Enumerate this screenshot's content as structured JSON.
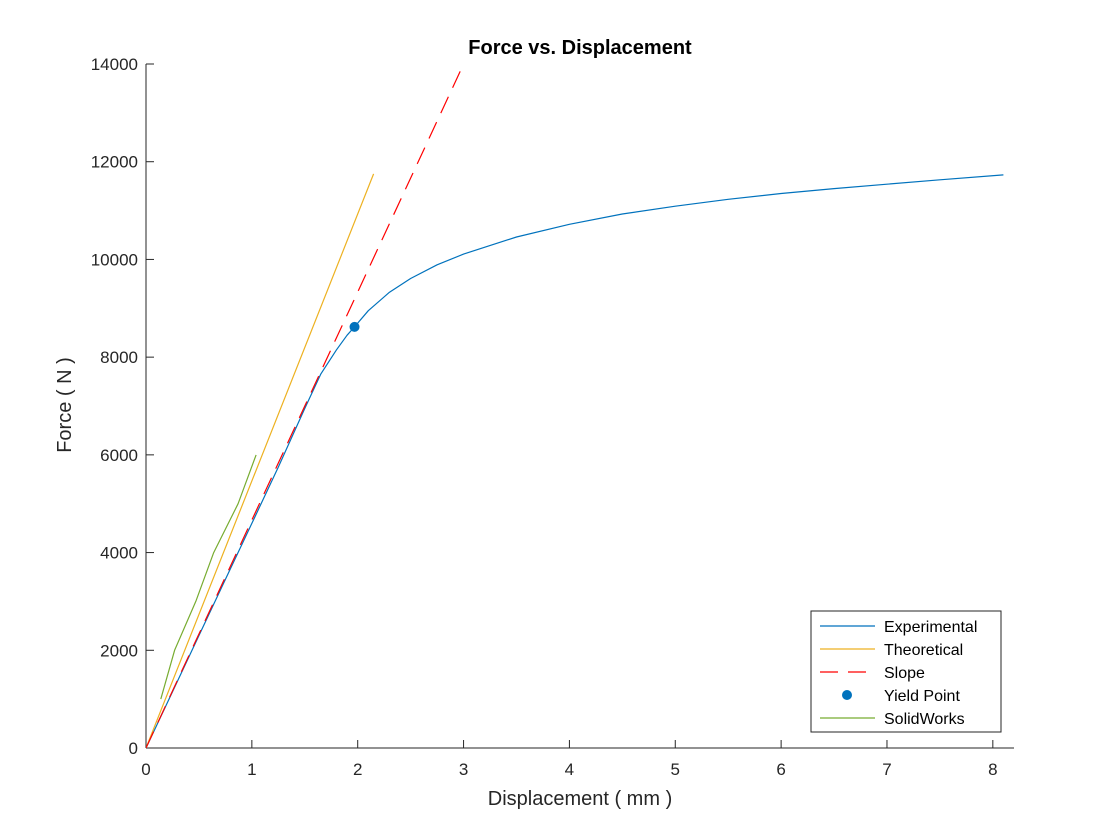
{
  "chart_data": {
    "type": "line",
    "title": "Force vs. Displacement",
    "xlabel": "Displacement ( mm )",
    "ylabel": "Force ( N )",
    "xlim": [
      0,
      8.2
    ],
    "ylim": [
      0,
      14000
    ],
    "xticks": [
      0,
      1,
      2,
      3,
      4,
      5,
      6,
      7,
      8
    ],
    "yticks": [
      0,
      2000,
      4000,
      6000,
      8000,
      10000,
      12000,
      14000
    ],
    "grid": false,
    "legend_position": "bottom-right",
    "series": [
      {
        "name": "Experimental",
        "color": "#0072BD",
        "style": "solid",
        "x": [
          0,
          0.25,
          0.5,
          0.75,
          1.0,
          1.25,
          1.5,
          1.65,
          1.8,
          1.9,
          1.97,
          2.1,
          2.3,
          2.5,
          2.75,
          3.0,
          3.5,
          4.0,
          4.5,
          5.0,
          5.5,
          6.0,
          6.5,
          7.0,
          7.5,
          8.1
        ],
        "y": [
          0,
          1150,
          2300,
          3450,
          4600,
          5750,
          6950,
          7650,
          8150,
          8450,
          8620,
          8950,
          9330,
          9610,
          9890,
          10110,
          10460,
          10720,
          10930,
          11090,
          11230,
          11350,
          11450,
          11540,
          11630,
          11730
        ]
      },
      {
        "name": "Theoretical",
        "color": "#EDB120",
        "style": "solid",
        "x": [
          0,
          2.15
        ],
        "y": [
          0,
          11750
        ]
      },
      {
        "name": "Slope",
        "color": "#FF0000",
        "style": "dashed",
        "x": [
          0,
          3.0
        ],
        "y": [
          0,
          14000
        ]
      },
      {
        "name": "Yield Point",
        "color": "#0072BD",
        "style": "marker",
        "x": [
          1.97
        ],
        "y": [
          8620
        ]
      },
      {
        "name": "SolidWorks",
        "color": "#77AC30",
        "style": "solid",
        "x": [
          0.14,
          0.27,
          0.47,
          0.64,
          0.87,
          1.04
        ],
        "y": [
          1000,
          2000,
          3000,
          4000,
          5000,
          6000
        ]
      }
    ]
  }
}
